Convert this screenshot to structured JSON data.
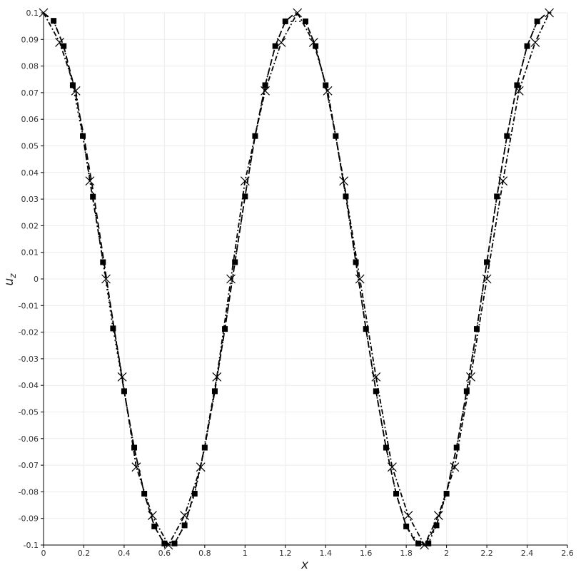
{
  "chart_data": {
    "type": "line",
    "title": "",
    "xlabel": "x",
    "ylabel": "u",
    "ylabel_subscript": "z",
    "xlim": [
      0,
      2.6
    ],
    "ylim": [
      -0.1,
      0.1
    ],
    "x_ticks": [
      "0",
      "0.2",
      "0.4",
      "0.6",
      "0.8",
      "1",
      "1.2",
      "1.4",
      "1.6",
      "1.8",
      "2",
      "2.2",
      "2.4",
      "2.6"
    ],
    "y_ticks": [
      "0.1",
      "0.09",
      "0.08",
      "0.07",
      "0.06",
      "0.05",
      "0.04",
      "0.03",
      "0.02",
      "0.01",
      "0",
      "-0.01",
      "-0.02",
      "-0.03",
      "-0.04",
      "-0.05",
      "-0.06",
      "-0.07",
      "-0.08",
      "-0.09",
      "-0.1"
    ],
    "grid": true,
    "legend": "none",
    "series": [
      {
        "line_style": "dashed",
        "marker": "none",
        "color": "#000000",
        "x": [
          0,
          0.05,
          0.1,
          0.15,
          0.2,
          0.25,
          0.3,
          0.35,
          0.4,
          0.45,
          0.5,
          0.55,
          0.6,
          0.63,
          0.65,
          0.7,
          0.75,
          0.8,
          0.85,
          0.9,
          0.95,
          1.0,
          1.05,
          1.1,
          1.15,
          1.2,
          1.25,
          1.3,
          1.35,
          1.4,
          1.45,
          1.5,
          1.55,
          1.6,
          1.65,
          1.7,
          1.75,
          1.8,
          1.85,
          1.89,
          1.95,
          2.0,
          2.05,
          2.1,
          2.15,
          2.2,
          2.25,
          2.3,
          2.35,
          2.4,
          2.45,
          2.5,
          2.52
        ],
        "y": [
          0.1,
          0.097,
          0.0875,
          0.0728,
          0.0537,
          0.0312,
          0.0063,
          -0.0186,
          -0.0422,
          -0.0634,
          -0.0807,
          -0.093,
          -0.0996,
          -0.1,
          -0.0994,
          -0.0926,
          -0.08,
          -0.0632,
          -0.0422,
          -0.0188,
          0.0063,
          0.031,
          0.0537,
          0.0728,
          0.0875,
          0.0968,
          0.1,
          0.0968,
          0.0875,
          0.0728,
          0.0537,
          0.031,
          0.0063,
          -0.0188,
          -0.0422,
          -0.0634,
          -0.0807,
          -0.093,
          -0.0994,
          -0.1,
          -0.0926,
          -0.08,
          -0.0632,
          -0.0422,
          -0.0188,
          0.0063,
          0.031,
          0.0537,
          0.0728,
          0.0875,
          0.0968,
          0.1,
          0.1
        ]
      },
      {
        "line_style": "dotted",
        "marker": "square",
        "color": "#000000",
        "x": [
          0.05,
          0.1,
          0.145,
          0.195,
          0.245,
          0.295,
          0.345,
          0.4,
          0.45,
          0.5,
          0.55,
          0.6,
          0.65,
          0.7,
          0.75,
          0.8,
          0.85,
          0.9,
          0.95,
          1.0,
          1.05,
          1.1,
          1.15,
          1.2,
          1.3,
          1.35,
          1.4,
          1.45,
          1.5,
          1.55,
          1.6,
          1.65,
          1.7,
          1.75,
          1.8,
          1.86,
          1.91,
          1.95,
          2.0,
          2.05,
          2.1,
          2.15,
          2.2,
          2.25,
          2.3,
          2.35,
          2.4,
          2.45
        ],
        "y": [
          0.097,
          0.0875,
          0.0728,
          0.0537,
          0.0309,
          0.0063,
          -0.0186,
          -0.0422,
          -0.0634,
          -0.0807,
          -0.093,
          -0.0994,
          -0.0994,
          -0.0926,
          -0.0807,
          -0.0634,
          -0.0422,
          -0.0188,
          0.0063,
          0.031,
          0.0537,
          0.0728,
          0.0875,
          0.0968,
          0.0968,
          0.0875,
          0.0728,
          0.0537,
          0.031,
          0.0063,
          -0.0188,
          -0.0422,
          -0.0634,
          -0.0807,
          -0.093,
          -0.0994,
          -0.0994,
          -0.0926,
          -0.0807,
          -0.0634,
          -0.0422,
          -0.0188,
          0.0063,
          0.031,
          0.0537,
          0.0728,
          0.0875,
          0.0968
        ]
      },
      {
        "line_style": "dash-dot",
        "marker": "x",
        "color": "#000000",
        "x": [
          0,
          0.08,
          0.16,
          0.23,
          0.31,
          0.39,
          0.46,
          0.54,
          0.62,
          0.7,
          0.78,
          0.86,
          0.93,
          1.0,
          1.1,
          1.18,
          1.26,
          1.34,
          1.41,
          1.49,
          1.57,
          1.65,
          1.73,
          1.81,
          1.89,
          1.96,
          2.04,
          2.12,
          2.2,
          2.28,
          2.36,
          2.44,
          2.51
        ],
        "y": [
          0.1,
          0.0889,
          0.0707,
          0.0368,
          0.0,
          -0.0368,
          -0.0707,
          -0.0889,
          -0.1,
          -0.0889,
          -0.0707,
          -0.0368,
          0.0,
          0.0368,
          0.0707,
          0.0889,
          0.1,
          0.0889,
          0.0707,
          0.0368,
          0.0,
          -0.0368,
          -0.0707,
          -0.0889,
          -0.1,
          -0.0889,
          -0.0707,
          -0.0368,
          0.0,
          0.0368,
          0.0707,
          0.0889,
          0.1
        ]
      }
    ]
  }
}
